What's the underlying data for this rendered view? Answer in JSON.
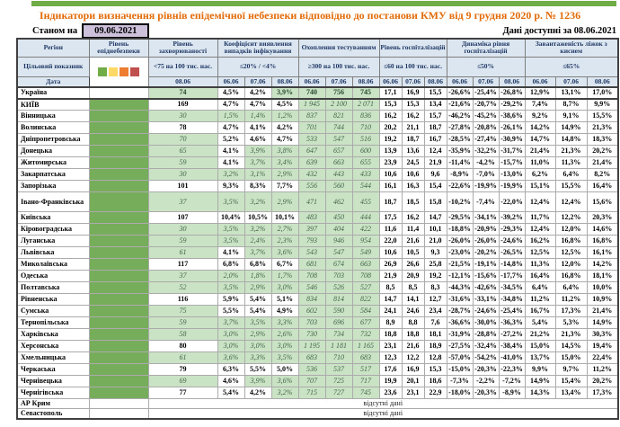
{
  "title": "Індикатори визначення рівнів епідемічної небезпеки відповідно до постанови КМУ від 9 грудня 2020 р. № 1236",
  "as_of": {
    "label": "Станом на",
    "date": "09.06.2021"
  },
  "available": "Дані доступні за 08.06.2021",
  "colors": {
    "top_bar": "#70AD47",
    "title_text": "#E26B0A",
    "header_bg": "#DCE6F1",
    "cell_green": "#C9E3C4",
    "epid_column_green": "#76AD5B",
    "date_box_bg": "#CCC0DA",
    "legend_squares": [
      "#70AD47",
      "#FFD966",
      "#ED7D31",
      "#C0504D"
    ]
  },
  "table": {
    "headers": {
      "region": "Регіон",
      "epid": "Рівень епіднебезпеки",
      "sick": "Рівень захворюваності",
      "detect": "Коефіцієнт виявлення випадків інфікування",
      "test": "Охоплення тестуванням",
      "hosp": "Рівень госпіталізацій",
      "dyn": "Динаміка рівня госпіталізацій",
      "beds": "Завантаженість ліжок з киснем"
    },
    "targets": {
      "sick": "<75 на 100 тис. нас.",
      "detect": "≤20% / <4%",
      "test": "≥300 на 100 тис. нас.",
      "hosp": "≤60 на 100 тис. нас.",
      "dyn": "≤50%",
      "beds": "≤65%"
    },
    "target_row_label": "Цільовий показник",
    "date_row_label": "Дата",
    "sick_date": "08.06",
    "dates": [
      "06.06",
      "07.06",
      "08.06"
    ],
    "no_data_text": "відсутні дані",
    "rows": [
      {
        "name": "Україна",
        "bold": true,
        "epid_green": false,
        "sick": "74",
        "sick_green": true,
        "detect": [
          "4,5%",
          "4,2%",
          "3,9%"
        ],
        "detect_green": [
          0,
          0,
          1
        ],
        "test": [
          "740",
          "756",
          "745"
        ],
        "hosp": [
          "17,1",
          "16,9",
          "15,5"
        ],
        "dynamics": [
          "-26,6%",
          "-25,4%",
          "-26,8%"
        ],
        "beds": [
          "12,9%",
          "13,1%",
          "17,0%"
        ]
      },
      {
        "name": "КИЇВ",
        "epid_green": true,
        "sick": "169",
        "sick_green": false,
        "detect": [
          "4,7%",
          "4,7%",
          "4,5%"
        ],
        "detect_green": [
          0,
          0,
          0
        ],
        "test": [
          "1 945",
          "2 100",
          "2 071"
        ],
        "hosp": [
          "15,3",
          "15,3",
          "13,4"
        ],
        "dynamics": [
          "-21,6%",
          "-20,7%",
          "-29,2%"
        ],
        "beds": [
          "7,4%",
          "8,7%",
          "9,9%"
        ]
      },
      {
        "name": "Вінницька",
        "epid_green": true,
        "sick": "30",
        "sick_green": true,
        "detect": [
          "1,5%",
          "1,4%",
          "1,2%"
        ],
        "detect_green": [
          1,
          1,
          1
        ],
        "test": [
          "837",
          "821",
          "836"
        ],
        "hosp": [
          "16,2",
          "16,2",
          "15,7"
        ],
        "dynamics": [
          "-46,2%",
          "-45,2%",
          "-38,6%"
        ],
        "beds": [
          "9,2%",
          "9,1%",
          "15,5%"
        ]
      },
      {
        "name": "Волинська",
        "epid_green": true,
        "sick": "78",
        "sick_green": false,
        "detect": [
          "4,7%",
          "4,1%",
          "4,2%"
        ],
        "detect_green": [
          0,
          0,
          0
        ],
        "test": [
          "701",
          "744",
          "710"
        ],
        "hosp": [
          "20,2",
          "21,1",
          "18,7"
        ],
        "dynamics": [
          "-27,8%",
          "-20,8%",
          "-26,1%"
        ],
        "beds": [
          "14,2%",
          "14,9%",
          "21,3%"
        ]
      },
      {
        "name": "Дніпропетровська",
        "epid_green": true,
        "sick": "70",
        "sick_green": true,
        "detect": [
          "5,2%",
          "4,6%",
          "4,7%"
        ],
        "detect_green": [
          0,
          0,
          0
        ],
        "test": [
          "533",
          "547",
          "516"
        ],
        "hosp": [
          "19,2",
          "18,7",
          "16,7"
        ],
        "dynamics": [
          "-28,5%",
          "-27,4%",
          "-30,9%"
        ],
        "beds": [
          "14,7%",
          "14,8%",
          "18,3%"
        ]
      },
      {
        "name": "Донецька",
        "epid_green": true,
        "sick": "65",
        "sick_green": true,
        "detect": [
          "4,1%",
          "3,9%",
          "3,8%"
        ],
        "detect_green": [
          0,
          1,
          1
        ],
        "test": [
          "647",
          "657",
          "600"
        ],
        "hosp": [
          "13,9",
          "13,6",
          "12,4"
        ],
        "dynamics": [
          "-35,9%",
          "-32,2%",
          "-31,7%"
        ],
        "beds": [
          "21,4%",
          "21,3%",
          "20,2%"
        ]
      },
      {
        "name": "Житомирська",
        "epid_green": true,
        "sick": "59",
        "sick_green": true,
        "detect": [
          "4,1%",
          "3,7%",
          "3,4%"
        ],
        "detect_green": [
          0,
          1,
          1
        ],
        "test": [
          "639",
          "663",
          "655"
        ],
        "hosp": [
          "23,9",
          "24,5",
          "21,9"
        ],
        "dynamics": [
          "-11,4%",
          "-4,2%",
          "-15,7%"
        ],
        "beds": [
          "11,0%",
          "11,3%",
          "21,4%"
        ]
      },
      {
        "name": "Закарпатська",
        "epid_green": true,
        "sick": "30",
        "sick_green": true,
        "detect": [
          "3,2%",
          "3,1%",
          "2,9%"
        ],
        "detect_green": [
          1,
          1,
          1
        ],
        "test": [
          "432",
          "443",
          "433"
        ],
        "hosp": [
          "10,6",
          "10,6",
          "9,6"
        ],
        "dynamics": [
          "-8,9%",
          "-7,0%",
          "-13,0%"
        ],
        "beds": [
          "6,2%",
          "6,4%",
          "8,2%"
        ]
      },
      {
        "name": "Запорізька",
        "epid_green": true,
        "sick": "101",
        "sick_green": false,
        "detect": [
          "9,3%",
          "8,3%",
          "7,7%"
        ],
        "detect_green": [
          0,
          0,
          0
        ],
        "test": [
          "556",
          "560",
          "544"
        ],
        "hosp": [
          "16,1",
          "16,3",
          "15,4"
        ],
        "dynamics": [
          "-22,6%",
          "-19,9%",
          "-19,9%"
        ],
        "beds": [
          "15,1%",
          "15,5%",
          "16,4%"
        ]
      },
      {
        "name": "Івано-Франківська",
        "tall": true,
        "epid_green": true,
        "sick": "37",
        "sick_green": true,
        "detect": [
          "3,5%",
          "3,2%",
          "2,9%"
        ],
        "detect_green": [
          1,
          1,
          1
        ],
        "test": [
          "471",
          "462",
          "455"
        ],
        "hosp": [
          "18,7",
          "18,5",
          "15,8"
        ],
        "dynamics": [
          "-10,2%",
          "-7,4%",
          "-22,0%"
        ],
        "beds": [
          "12,4%",
          "12,4%",
          "15,6%"
        ]
      },
      {
        "name": "Київська",
        "epid_green": true,
        "sick": "107",
        "sick_green": false,
        "detect": [
          "10,4%",
          "10,5%",
          "10,1%"
        ],
        "detect_green": [
          0,
          0,
          0
        ],
        "test": [
          "483",
          "450",
          "444"
        ],
        "hosp": [
          "17,5",
          "16,2",
          "14,7"
        ],
        "dynamics": [
          "-29,5%",
          "-34,1%",
          "-39,2%"
        ],
        "beds": [
          "11,7%",
          "12,2%",
          "20,3%"
        ]
      },
      {
        "name": "Кіровоградська",
        "epid_green": true,
        "sick": "30",
        "sick_green": true,
        "detect": [
          "3,5%",
          "3,2%",
          "2,7%"
        ],
        "detect_green": [
          1,
          1,
          1
        ],
        "test": [
          "397",
          "404",
          "422"
        ],
        "hosp": [
          "11,6",
          "11,4",
          "10,1"
        ],
        "dynamics": [
          "-18,8%",
          "-20,9%",
          "-29,3%"
        ],
        "beds": [
          "12,4%",
          "12,0%",
          "14,6%"
        ]
      },
      {
        "name": "Луганська",
        "epid_green": true,
        "sick": "59",
        "sick_green": true,
        "detect": [
          "3,5%",
          "2,4%",
          "2,3%"
        ],
        "detect_green": [
          1,
          1,
          1
        ],
        "test": [
          "793",
          "946",
          "954"
        ],
        "hosp": [
          "22,0",
          "21,6",
          "21,0"
        ],
        "dynamics": [
          "-26,0%",
          "-26,0%",
          "-24,6%"
        ],
        "beds": [
          "16,2%",
          "16,8%",
          "16,8%"
        ]
      },
      {
        "name": "Львівська",
        "epid_green": true,
        "sick": "61",
        "sick_green": true,
        "detect": [
          "4,1%",
          "3,7%",
          "3,6%"
        ],
        "detect_green": [
          0,
          1,
          1
        ],
        "test": [
          "543",
          "547",
          "549"
        ],
        "hosp": [
          "10,6",
          "10,5",
          "9,3"
        ],
        "dynamics": [
          "-23,0%",
          "-20,2%",
          "-26,5%"
        ],
        "beds": [
          "12,5%",
          "12,5%",
          "16,1%"
        ]
      },
      {
        "name": "Миколаївська",
        "epid_green": true,
        "sick": "117",
        "sick_green": false,
        "detect": [
          "6,8%",
          "6,8%",
          "6,7%"
        ],
        "detect_green": [
          0,
          0,
          0
        ],
        "test": [
          "681",
          "674",
          "663"
        ],
        "hosp": [
          "26,9",
          "26,6",
          "25,8"
        ],
        "dynamics": [
          "-21,5%",
          "-19,1%",
          "-14,8%"
        ],
        "beds": [
          "11,3%",
          "12,0%",
          "14,2%"
        ]
      },
      {
        "name": "Одеська",
        "epid_green": true,
        "sick": "37",
        "sick_green": true,
        "detect": [
          "2,0%",
          "1,8%",
          "1,7%"
        ],
        "detect_green": [
          1,
          1,
          1
        ],
        "test": [
          "708",
          "703",
          "708"
        ],
        "hosp": [
          "21,9",
          "20,9",
          "19,2"
        ],
        "dynamics": [
          "-12,1%",
          "-15,6%",
          "-17,7%"
        ],
        "beds": [
          "16,4%",
          "16,8%",
          "18,1%"
        ]
      },
      {
        "name": "Полтавська",
        "epid_green": true,
        "sick": "52",
        "sick_green": true,
        "detect": [
          "3,5%",
          "2,9%",
          "3,0%"
        ],
        "detect_green": [
          1,
          1,
          1
        ],
        "test": [
          "546",
          "526",
          "527"
        ],
        "hosp": [
          "8,5",
          "8,5",
          "8,3"
        ],
        "dynamics": [
          "-44,3%",
          "-42,6%",
          "-34,5%"
        ],
        "beds": [
          "6,4%",
          "6,4%",
          "10,0%"
        ]
      },
      {
        "name": "Рівненська",
        "epid_green": true,
        "sick": "116",
        "sick_green": false,
        "detect": [
          "5,9%",
          "5,4%",
          "5,1%"
        ],
        "detect_green": [
          0,
          0,
          0
        ],
        "test": [
          "834",
          "814",
          "822"
        ],
        "hosp": [
          "14,7",
          "14,1",
          "12,7"
        ],
        "dynamics": [
          "-31,6%",
          "-33,1%",
          "-34,8%"
        ],
        "beds": [
          "11,2%",
          "11,2%",
          "10,9%"
        ]
      },
      {
        "name": "Сумська",
        "epid_green": true,
        "sick": "75",
        "sick_green": true,
        "detect": [
          "5,5%",
          "5,4%",
          "4,9%"
        ],
        "detect_green": [
          0,
          0,
          0
        ],
        "test": [
          "602",
          "590",
          "584"
        ],
        "hosp": [
          "24,1",
          "24,6",
          "23,4"
        ],
        "dynamics": [
          "-28,7%",
          "-24,6%",
          "-25,4%"
        ],
        "beds": [
          "16,7%",
          "17,3%",
          "21,4%"
        ]
      },
      {
        "name": "Тернопільська",
        "epid_green": true,
        "sick": "59",
        "sick_green": true,
        "detect": [
          "3,7%",
          "3,5%",
          "3,3%"
        ],
        "detect_green": [
          1,
          1,
          1
        ],
        "test": [
          "703",
          "696",
          "677"
        ],
        "hosp": [
          "8,9",
          "8,8",
          "7,6"
        ],
        "dynamics": [
          "-36,6%",
          "-30,0%",
          "-36,3%"
        ],
        "beds": [
          "5,4%",
          "5,3%",
          "14,9%"
        ]
      },
      {
        "name": "Харківська",
        "epid_green": true,
        "sick": "58",
        "sick_green": true,
        "detect": [
          "3,0%",
          "2,9%",
          "2,6%"
        ],
        "detect_green": [
          1,
          1,
          1
        ],
        "test": [
          "730",
          "734",
          "732"
        ],
        "hosp": [
          "18,8",
          "18,8",
          "18,1"
        ],
        "dynamics": [
          "-31,9%",
          "-28,8%",
          "-27,2%"
        ],
        "beds": [
          "21,2%",
          "21,3%",
          "30,3%"
        ]
      },
      {
        "name": "Херсонська",
        "epid_green": true,
        "sick": "80",
        "sick_green": false,
        "detect": [
          "3,0%",
          "3,0%",
          "3,0%"
        ],
        "detect_green": [
          1,
          1,
          1
        ],
        "test": [
          "1 195",
          "1 181",
          "1 165"
        ],
        "hosp": [
          "23,1",
          "21,6",
          "18,9"
        ],
        "dynamics": [
          "-27,5%",
          "-32,4%",
          "-38,4%"
        ],
        "beds": [
          "15,0%",
          "14,5%",
          "19,4%"
        ]
      },
      {
        "name": "Хмельницька",
        "epid_green": true,
        "sick": "61",
        "sick_green": true,
        "detect": [
          "3,6%",
          "3,3%",
          "3,5%"
        ],
        "detect_green": [
          1,
          1,
          1
        ],
        "test": [
          "683",
          "710",
          "683"
        ],
        "hosp": [
          "12,3",
          "12,2",
          "12,8"
        ],
        "dynamics": [
          "-57,0%",
          "-54,2%",
          "-41,0%"
        ],
        "beds": [
          "13,7%",
          "15,0%",
          "22,4%"
        ]
      },
      {
        "name": "Черкаська",
        "epid_green": true,
        "sick": "79",
        "sick_green": false,
        "detect": [
          "6,3%",
          "5,5%",
          "5,0%"
        ],
        "detect_green": [
          0,
          0,
          0
        ],
        "test": [
          "536",
          "537",
          "517"
        ],
        "hosp": [
          "17,6",
          "16,9",
          "15,3"
        ],
        "dynamics": [
          "-15,0%",
          "-20,3%",
          "-22,3%"
        ],
        "beds": [
          "9,9%",
          "9,7%",
          "11,2%"
        ]
      },
      {
        "name": "Чернівецька",
        "epid_green": true,
        "sick": "69",
        "sick_green": true,
        "detect": [
          "4,6%",
          "3,9%",
          "3,6%"
        ],
        "detect_green": [
          0,
          1,
          1
        ],
        "test": [
          "707",
          "725",
          "717"
        ],
        "hosp": [
          "19,9",
          "20,1",
          "18,6"
        ],
        "dynamics": [
          "-7,3%",
          "-2,2%",
          "-7,2%"
        ],
        "beds": [
          "14,9%",
          "15,4%",
          "20,2%"
        ]
      },
      {
        "name": "Чернігівська",
        "epid_green": true,
        "sick": "77",
        "sick_green": false,
        "detect": [
          "5,4%",
          "4,2%",
          "3,2%"
        ],
        "detect_green": [
          0,
          0,
          1
        ],
        "test": [
          "715",
          "727",
          "745"
        ],
        "hosp": [
          "23,6",
          "23,1",
          "22,9"
        ],
        "dynamics": [
          "-18,0%",
          "-20,3%",
          "-8,9%"
        ],
        "beds": [
          "14,3%",
          "13,4%",
          "17,3%"
        ]
      },
      {
        "name": "АР Крим",
        "no_data": true
      },
      {
        "name": "Севастополь",
        "no_data": true
      }
    ]
  }
}
